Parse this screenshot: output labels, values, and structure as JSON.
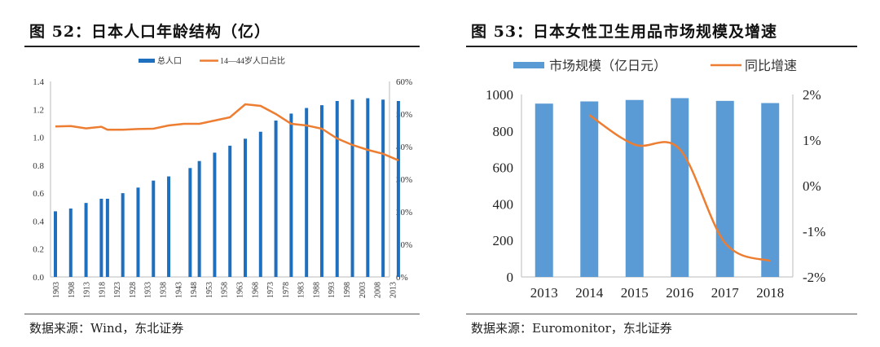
{
  "colors": {
    "bar_left": "#1f6fbf",
    "bar_right": "#5b9bd5",
    "line": "#ed7d31"
  },
  "panels": [
    {
      "title": "图  52：日本人口年龄结构（亿）",
      "source": "数据来源：Wind，东北证券"
    },
    {
      "title": "图  53：日本女性卫生用品市场规模及增速",
      "source": "数据来源：Euromonitor，东北证券"
    }
  ],
  "chart_data": [
    {
      "type": "bar+line",
      "legend_position": "top",
      "grid": false,
      "x_tick_labels": [
        "1903",
        "1908",
        "1913",
        "1918",
        "1923",
        "1928",
        "1933",
        "1938",
        "1943",
        "1948",
        "1953",
        "1958",
        "1963",
        "1968",
        "1973",
        "1978",
        "1983",
        "1988",
        "1993",
        "1998",
        "2003",
        "2008",
        "2013"
      ],
      "y_left": {
        "ylim": [
          0,
          1.4
        ],
        "ticks": [
          "0.0",
          "0.2",
          "0.4",
          "0.6",
          "0.8",
          "1.0",
          "1.2",
          "1.4"
        ]
      },
      "y_right": {
        "ylim": [
          0,
          60
        ],
        "ticks": [
          "0%",
          "10%",
          "20%",
          "30%",
          "40%",
          "50%",
          "60%"
        ]
      },
      "series": [
        {
          "name": "总人口",
          "type": "bar",
          "axis": "left",
          "x": [
            1903,
            1908,
            1913,
            1918,
            1920,
            1925,
            1930,
            1935,
            1940,
            1947,
            1950,
            1955,
            1960,
            1965,
            1970,
            1975,
            1980,
            1985,
            1990,
            1995,
            2000,
            2005,
            2010,
            2015
          ],
          "values": [
            0.47,
            0.49,
            0.53,
            0.56,
            0.56,
            0.6,
            0.64,
            0.69,
            0.72,
            0.78,
            0.83,
            0.89,
            0.94,
            0.99,
            1.04,
            1.12,
            1.17,
            1.21,
            1.23,
            1.26,
            1.27,
            1.28,
            1.27,
            1.26
          ]
        },
        {
          "name": "14—44岁人口占比",
          "type": "line",
          "axis": "right",
          "x": [
            1903,
            1908,
            1913,
            1918,
            1920,
            1925,
            1930,
            1935,
            1940,
            1945,
            1950,
            1955,
            1960,
            1965,
            1970,
            1975,
            1980,
            1985,
            1990,
            1995,
            2000,
            2005,
            2010,
            2015
          ],
          "values": [
            46.2,
            46.3,
            45.6,
            46.1,
            45.2,
            45.2,
            45.4,
            45.5,
            46.5,
            47,
            47,
            48,
            49,
            53,
            52.5,
            50,
            47,
            46.5,
            45.5,
            42.5,
            40.5,
            39,
            37.8,
            35.8
          ]
        }
      ]
    },
    {
      "type": "bar+line",
      "legend_position": "top",
      "grid": false,
      "categories": [
        "2013",
        "2014",
        "2015",
        "2016",
        "2017",
        "2018"
      ],
      "y_left": {
        "ylim": [
          0,
          1000
        ],
        "ticks": [
          "0",
          "200",
          "400",
          "600",
          "800",
          "1000"
        ]
      },
      "y_right": {
        "ylim": [
          -2,
          2
        ],
        "ticks": [
          "-2%",
          "-1%",
          "0%",
          "1%",
          "2%"
        ]
      },
      "series": [
        {
          "name": "市场规模（亿日元）",
          "type": "bar",
          "axis": "left",
          "values": [
            950,
            962,
            970,
            980,
            965,
            953
          ]
        },
        {
          "name": "同比增速",
          "type": "line",
          "axis": "right",
          "values": [
            null,
            1.55,
            0.9,
            0.8,
            -1.25,
            -1.65
          ]
        }
      ]
    }
  ]
}
